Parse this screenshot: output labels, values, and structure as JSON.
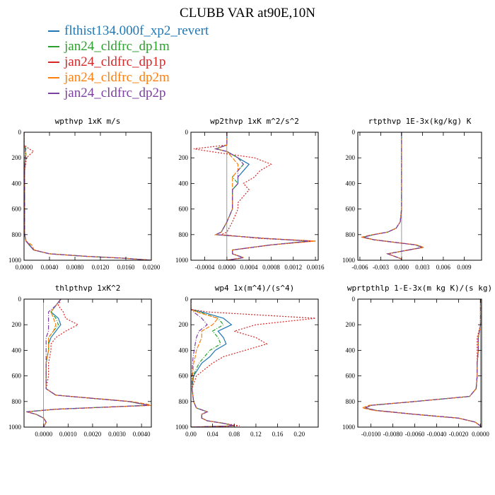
{
  "title": "CLUBB VAR at90E,10N",
  "series": [
    {
      "name": "flthist134.000f_xp2_revert",
      "color": "#1f77b4",
      "dash": ""
    },
    {
      "name": "jan24_cldfrc_dp1m",
      "color": "#2ca02c",
      "dash": "5,2,1,2"
    },
    {
      "name": "jan24_cldfrc_dp1p",
      "color": "#d62728",
      "dash": "2,2"
    },
    {
      "name": "jan24_cldfrc_dp2m",
      "color": "#ff7f0e",
      "dash": "6,2"
    },
    {
      "name": "jan24_cldfrc_dp2p",
      "color": "#7b3fa0",
      "dash": "6,2,1,2"
    }
  ],
  "chart_data": [
    {
      "type": "line",
      "title": "wpthvp  1xK m/s",
      "xlim": [
        0,
        0.02
      ],
      "ylim": [
        0,
        1000
      ],
      "y_inverted": true,
      "xticks": [
        0,
        0.004,
        0.008,
        0.012,
        0.016,
        0.02
      ],
      "xticklabels": [
        "0.0000",
        "0.0040",
        "0.0080",
        "0.0120",
        "0.0160",
        "0.0200"
      ],
      "yticks": [
        0,
        200,
        400,
        600,
        800,
        1000
      ],
      "yticklabels": [
        "0",
        "200",
        "400",
        "600",
        "800",
        "1000"
      ],
      "y": [
        0,
        100,
        130,
        150,
        170,
        200,
        300,
        500,
        700,
        800,
        850,
        880,
        920,
        950,
        970,
        985,
        1000
      ],
      "series_values": [
        [
          0,
          0,
          0.0003,
          0.0002,
          0.0003,
          0.0002,
          0.0001,
          0.0001,
          0.0001,
          0.0001,
          0.0003,
          0.0008,
          0.0015,
          0.004,
          0.01,
          0.016,
          0.02
        ],
        [
          0,
          0,
          0.0003,
          0.0002,
          0.0003,
          0.0002,
          0.0001,
          0.0001,
          0.0001,
          0.0001,
          0.0003,
          0.0009,
          0.0015,
          0.004,
          0.01,
          0.016,
          0.02
        ],
        [
          0,
          0,
          0.0008,
          0.0015,
          0.001,
          0.0004,
          0.0001,
          0.0001,
          0.0001,
          0.0001,
          0.0003,
          0.0008,
          0.0015,
          0.004,
          0.01,
          0.016,
          0.02
        ],
        [
          0,
          0,
          0.0002,
          0.0002,
          0.0003,
          0.0002,
          0.0001,
          0.0001,
          0.0001,
          0.0001,
          0.0003,
          0.0012,
          0.0016,
          0.004,
          0.01,
          0.016,
          0.02
        ],
        [
          0,
          0,
          0.0002,
          0.0002,
          0.0002,
          0.0002,
          0.0001,
          0.0001,
          0.0001,
          0.0001,
          0.0003,
          0.0009,
          0.0015,
          0.004,
          0.01,
          0.016,
          0.02
        ]
      ]
    },
    {
      "type": "line",
      "title": "wp2thvp  1xK m^2/s^2",
      "xlim": [
        -0.00065,
        0.00165
      ],
      "ylim": [
        0,
        1000
      ],
      "y_inverted": true,
      "xticks": [
        -0.0004,
        0,
        0.0004,
        0.0008,
        0.0012,
        0.0016
      ],
      "xticklabels": [
        "-0.0004",
        "0.0000",
        "0.0004",
        "0.0008",
        "0.0012",
        "0.0016"
      ],
      "yticks": [
        0,
        200,
        400,
        600,
        800,
        1000
      ],
      "yticklabels": [
        "0",
        "200",
        "400",
        "600",
        "800",
        "1000"
      ],
      "y": [
        0,
        100,
        130,
        150,
        200,
        250,
        300,
        350,
        400,
        450,
        500,
        550,
        600,
        700,
        780,
        800,
        830,
        850,
        880,
        920,
        950,
        980,
        1000
      ],
      "series_values": [
        [
          0,
          0,
          -0.0002,
          0,
          0.0002,
          0.0004,
          0.0003,
          0.0002,
          0.0002,
          0.0001,
          0.0001,
          0.0001,
          0.0001,
          0,
          -0.0001,
          -0.0002,
          0.0007,
          0.0015,
          0.0008,
          0.0001,
          0.0001,
          0.0003,
          0
        ],
        [
          0,
          0,
          -0.0002,
          0,
          0.0002,
          0.0003,
          0.0002,
          0.0001,
          0.0002,
          0.0001,
          0.0001,
          0.0001,
          0.0001,
          0,
          -0.0001,
          -0.0002,
          0.0007,
          0.0015,
          0.0008,
          0.0001,
          0.0001,
          0.0003,
          0
        ],
        [
          0,
          0,
          -0.0006,
          -0.0003,
          0.0005,
          0.0008,
          0.0006,
          0.0005,
          0.0003,
          0.0004,
          0.0003,
          0.0002,
          0.0002,
          0.0001,
          0,
          -0.0001,
          0.0006,
          0.0016,
          0.0008,
          0.0001,
          0.0001,
          0.0003,
          0
        ],
        [
          0,
          0,
          -0.0002,
          0,
          0.0001,
          0.0002,
          0.0002,
          0.0001,
          0.0001,
          0.0001,
          0.0001,
          0.0001,
          0.0001,
          0,
          -0.0001,
          -0.0002,
          0.0007,
          0.0016,
          0.0008,
          0.0001,
          0.0001,
          0.0003,
          0
        ],
        [
          0,
          0,
          -0.0002,
          0,
          0.0002,
          0.0003,
          0.0002,
          0.0002,
          0.0002,
          0.0001,
          0.0001,
          0.0001,
          0.0001,
          0,
          -0.0001,
          -0.0002,
          0.0007,
          0.0015,
          0.0008,
          0.0001,
          0.0001,
          0.0003,
          0
        ]
      ]
    },
    {
      "type": "line",
      "title": "rtpthvp  1E-3x(kg/kg) K",
      "xlim": [
        -0.0063,
        0.0115
      ],
      "ylim": [
        0,
        1000
      ],
      "y_inverted": true,
      "xticks": [
        -0.006,
        -0.003,
        0,
        0.003,
        0.006,
        0.009
      ],
      "xticklabels": [
        "-0.006",
        "-0.003",
        "0.000",
        "0.003",
        "0.006",
        "0.009"
      ],
      "yticks": [
        0,
        200,
        400,
        600,
        800,
        1000
      ],
      "yticklabels": [
        "0",
        "200",
        "400",
        "600",
        "800",
        "1000"
      ],
      "y": [
        0,
        100,
        200,
        400,
        600,
        700,
        750,
        780,
        800,
        820,
        840,
        860,
        880,
        900,
        920,
        950,
        970,
        990,
        1000
      ],
      "series_values": [
        [
          0,
          0,
          0,
          0,
          0,
          -0.0002,
          -0.0008,
          -0.002,
          -0.004,
          -0.0055,
          -0.004,
          -0.001,
          0.002,
          0.003,
          0.001,
          -0.002,
          -0.001,
          0,
          0
        ],
        [
          0,
          0,
          0,
          0,
          0,
          -0.0002,
          -0.0008,
          -0.002,
          -0.004,
          -0.0055,
          -0.004,
          -0.001,
          0.002,
          0.003,
          0.001,
          -0.002,
          -0.001,
          0,
          0
        ],
        [
          0,
          0,
          0,
          0,
          0,
          -0.0002,
          -0.0008,
          -0.002,
          -0.004,
          -0.0057,
          -0.004,
          -0.001,
          0.002,
          0.003,
          0.001,
          -0.002,
          -0.001,
          0,
          0
        ],
        [
          0,
          0,
          0,
          0,
          0,
          -0.0002,
          -0.0008,
          -0.002,
          -0.0042,
          -0.0058,
          -0.004,
          -0.001,
          0.0022,
          0.0032,
          0.001,
          -0.002,
          -0.001,
          0,
          0
        ],
        [
          0,
          0,
          0,
          0,
          0,
          -0.0002,
          -0.0008,
          -0.002,
          -0.004,
          -0.0055,
          -0.004,
          -0.001,
          0.002,
          0.003,
          0.001,
          -0.002,
          -0.001,
          0,
          0
        ]
      ]
    },
    {
      "type": "line",
      "title": "thlpthvp  1xK^2",
      "xlim": [
        -0.0008,
        0.0044
      ],
      "ylim": [
        0,
        1000
      ],
      "y_inverted": true,
      "xticks": [
        0,
        0.001,
        0.002,
        0.003,
        0.004
      ],
      "xticklabels": [
        "0.0000",
        "0.0010",
        "0.0020",
        "0.0030",
        "0.0040"
      ],
      "yticks": [
        0,
        200,
        400,
        600,
        800,
        1000
      ],
      "yticklabels": [
        "0",
        "200",
        "400",
        "600",
        "800",
        "1000"
      ],
      "y": [
        0,
        50,
        100,
        150,
        200,
        250,
        300,
        350,
        400,
        500,
        600,
        700,
        750,
        800,
        830,
        860,
        880,
        900,
        930,
        960,
        1000
      ],
      "series_values": [
        [
          0.0007,
          0.0005,
          0.0003,
          0.0006,
          0.0007,
          0.0005,
          0.0003,
          0.0002,
          0.0002,
          0.0001,
          0.0001,
          0.0001,
          0.0005,
          0.0035,
          0.0043,
          0.0005,
          -0.0007,
          -0.0003,
          0,
          0.0001,
          0
        ],
        [
          0.0007,
          0.0005,
          0.0003,
          0.0005,
          0.0006,
          0.0004,
          0.0002,
          0.0002,
          0.0002,
          0.0001,
          0.0001,
          0.0001,
          0.0005,
          0.0035,
          0.0043,
          0.0005,
          -0.0007,
          -0.0003,
          0,
          0.0001,
          0
        ],
        [
          0.0007,
          0.0006,
          0.0008,
          0.0009,
          0.0014,
          0.0009,
          0.0005,
          0.0003,
          0.0003,
          0.0002,
          0.0002,
          0.0001,
          0.0005,
          0.0035,
          0.0043,
          0.0005,
          -0.0007,
          -0.0003,
          0,
          0.0001,
          0
        ],
        [
          0.0007,
          0.0005,
          0.0003,
          0.0004,
          0.0005,
          0.0004,
          0.0002,
          0.0002,
          0.0002,
          0.0001,
          0.0001,
          0.0001,
          0.0005,
          0.0036,
          0.0045,
          0.0005,
          -0.0007,
          -0.0003,
          0,
          0.0001,
          0
        ],
        [
          0.0007,
          0.0005,
          0.0002,
          0.0002,
          0.0002,
          0.0002,
          0.0001,
          0.0001,
          0.0001,
          0.0001,
          0.0001,
          0.0001,
          0.0005,
          0.0035,
          0.0043,
          0.0005,
          -0.0007,
          -0.0003,
          0,
          0.0001,
          0
        ]
      ]
    },
    {
      "type": "line",
      "title": "wp4  1x(m^4)/(s^4)",
      "xlim": [
        0,
        0.235
      ],
      "ylim": [
        0,
        1000
      ],
      "y_inverted": true,
      "xticks": [
        0,
        0.04,
        0.08,
        0.12,
        0.16,
        0.2
      ],
      "xticklabels": [
        "0.00",
        "0.04",
        "0.08",
        "0.12",
        "0.16",
        "0.20"
      ],
      "yticks": [
        0,
        200,
        400,
        600,
        800,
        1000
      ],
      "yticklabels": [
        "0",
        "200",
        "400",
        "600",
        "800",
        "1000"
      ],
      "y": [
        0,
        80,
        100,
        150,
        200,
        250,
        300,
        350,
        400,
        450,
        500,
        600,
        700,
        800,
        850,
        880,
        900,
        930,
        950,
        970,
        990,
        1000
      ],
      "series_values": [
        [
          0,
          0,
          0.02,
          0.06,
          0.075,
          0.05,
          0.06,
          0.065,
          0.045,
          0.035,
          0.02,
          0.005,
          0.002,
          0.005,
          0.01,
          0.03,
          0.02,
          0.02,
          0.03,
          0.06,
          0.08,
          0
        ],
        [
          0,
          0,
          0.015,
          0.05,
          0.06,
          0.04,
          0.05,
          0.055,
          0.035,
          0.025,
          0.015,
          0.004,
          0.002,
          0.005,
          0.01,
          0.03,
          0.02,
          0.02,
          0.03,
          0.06,
          0.08,
          0
        ],
        [
          0,
          0,
          0.03,
          0.23,
          0.12,
          0.08,
          0.12,
          0.14,
          0.1,
          0.06,
          0.04,
          0.01,
          0.002,
          0.005,
          0.01,
          0.03,
          0.02,
          0.02,
          0.03,
          0.06,
          0.09,
          0
        ],
        [
          0,
          0,
          0.01,
          0.05,
          0.04,
          0.02,
          0.02,
          0.015,
          0.01,
          0.008,
          0.005,
          0.003,
          0.002,
          0.005,
          0.01,
          0.03,
          0.02,
          0.02,
          0.03,
          0.06,
          0.08,
          0
        ],
        [
          0,
          0,
          0.005,
          0.02,
          0.03,
          0.015,
          0.01,
          0.008,
          0.006,
          0.004,
          0.003,
          0.002,
          0.002,
          0.005,
          0.01,
          0.03,
          0.02,
          0.02,
          0.03,
          0.06,
          0.08,
          0
        ]
      ]
    },
    {
      "type": "line",
      "title": "wprtpthlp  1-E-3x(m kg K)/(s kg)",
      "xlim": [
        -0.0112,
        0.0001
      ],
      "ylim": [
        0,
        1000
      ],
      "y_inverted": true,
      "xticks": [
        -0.01,
        -0.008,
        -0.006,
        -0.004,
        -0.002,
        0
      ],
      "xticklabels": [
        "-0.0100",
        "-0.0080",
        "-0.0060",
        "-0.0040",
        "-0.0020",
        "0.0000"
      ],
      "yticks": [
        0,
        200,
        400,
        600,
        800,
        1000
      ],
      "yticklabels": [
        "0",
        "200",
        "400",
        "600",
        "800",
        "1000"
      ],
      "y": [
        0,
        100,
        200,
        300,
        400,
        500,
        600,
        700,
        760,
        800,
        830,
        850,
        870,
        900,
        930,
        960,
        990,
        1000
      ],
      "series_values": [
        [
          0,
          0,
          0,
          -0.0002,
          -0.0002,
          -0.0003,
          -0.0003,
          -0.0004,
          -0.001,
          -0.006,
          -0.01,
          -0.0105,
          -0.0095,
          -0.006,
          -0.002,
          -0.0005,
          0,
          0
        ],
        [
          0,
          0,
          0,
          -0.0002,
          -0.0002,
          -0.0003,
          -0.0003,
          -0.0004,
          -0.001,
          -0.006,
          -0.01,
          -0.0105,
          -0.0095,
          -0.006,
          -0.002,
          -0.0005,
          0,
          0
        ],
        [
          0,
          0,
          0,
          -0.0003,
          -0.0003,
          -0.0003,
          -0.0003,
          -0.0004,
          -0.001,
          -0.006,
          -0.01,
          -0.0106,
          -0.0095,
          -0.006,
          -0.002,
          -0.0005,
          0,
          0
        ],
        [
          0,
          0,
          0,
          -0.0002,
          -0.0002,
          -0.0003,
          -0.0003,
          -0.0004,
          -0.001,
          -0.006,
          -0.0102,
          -0.0108,
          -0.0097,
          -0.006,
          -0.002,
          -0.0005,
          0,
          0
        ],
        [
          0,
          0,
          0,
          -0.0002,
          -0.0002,
          -0.0003,
          -0.0003,
          -0.0004,
          -0.001,
          -0.006,
          -0.01,
          -0.0105,
          -0.0095,
          -0.006,
          -0.002,
          -0.0005,
          0,
          0
        ]
      ]
    }
  ]
}
